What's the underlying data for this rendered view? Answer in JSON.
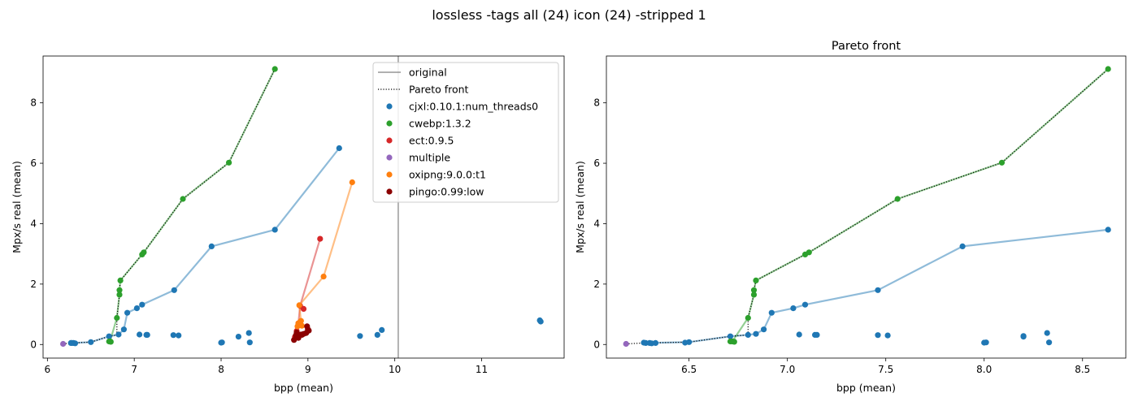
{
  "figure": {
    "suptitle": "lossless -tags all (24) icon (24) -stripped 1"
  },
  "colors": {
    "cjxl": "#1f77b4",
    "cwebp": "#2ca02c",
    "ect": "#d62728",
    "multiple": "#9467bd",
    "oxipng": "#ff7f0e",
    "pingo": "#8b0000",
    "original": "#808080",
    "pareto": "#000000"
  },
  "chart_data": [
    {
      "type": "scatter",
      "title": "",
      "xlabel": "bpp (mean)",
      "ylabel": "Mpx/s real (mean)",
      "xlim": [
        5.95,
        11.95
      ],
      "ylim": [
        -0.45,
        9.55
      ],
      "xticks": [
        6,
        7,
        8,
        9,
        10,
        11
      ],
      "yticks": [
        0,
        2,
        4,
        6,
        8
      ],
      "grid": false,
      "legend_position": "top-right",
      "original_bpp": 10.04,
      "legend": [
        {
          "label": "original",
          "kind": "line",
          "color": "#808080"
        },
        {
          "label": "Pareto front",
          "kind": "dotted",
          "color": "#000000"
        },
        {
          "label": "cjxl:0.10.1:num_threads0",
          "kind": "point",
          "color": "#1f77b4"
        },
        {
          "label": "cwebp:1.3.2",
          "kind": "point",
          "color": "#2ca02c"
        },
        {
          "label": "ect:0.9.5",
          "kind": "point",
          "color": "#d62728"
        },
        {
          "label": "multiple",
          "kind": "point",
          "color": "#9467bd"
        },
        {
          "label": "oxipng:9.0.0:t1",
          "kind": "point",
          "color": "#ff7f0e"
        },
        {
          "label": "pingo:0.99:low",
          "kind": "point",
          "color": "#8b0000"
        }
      ],
      "series": [
        {
          "name": "cjxl:0.10.1:num_threads0",
          "color": "#1f77b4",
          "line": [
            [
              6.3,
              0.05
            ],
            [
              6.5,
              0.08
            ],
            [
              6.71,
              0.27
            ],
            [
              6.82,
              0.33
            ],
            [
              6.88,
              0.5
            ],
            [
              6.92,
              1.05
            ],
            [
              7.03,
              1.2
            ],
            [
              7.09,
              1.32
            ],
            [
              7.46,
              1.8
            ],
            [
              7.89,
              3.25
            ],
            [
              8.62,
              3.8
            ],
            [
              9.36,
              6.5
            ]
          ],
          "extra": [
            [
              6.27,
              0.05
            ],
            [
              6.28,
              0.05
            ],
            [
              6.32,
              0.04
            ],
            [
              7.06,
              0.33
            ],
            [
              7.14,
              0.32
            ],
            [
              7.15,
              0.32
            ],
            [
              7.45,
              0.31
            ],
            [
              7.51,
              0.3
            ],
            [
              8.0,
              0.06
            ],
            [
              8.01,
              0.07
            ],
            [
              8.2,
              0.26
            ],
            [
              8.32,
              0.38
            ],
            [
              8.33,
              0.07
            ],
            [
              9.6,
              0.28
            ],
            [
              9.8,
              0.32
            ],
            [
              9.85,
              0.48
            ],
            [
              11.67,
              0.8
            ],
            [
              11.68,
              0.76
            ]
          ]
        },
        {
          "name": "cwebp:1.3.2",
          "color": "#2ca02c",
          "line": [
            [
              6.72,
              0.1
            ],
            [
              6.8,
              0.88
            ],
            [
              6.83,
              1.65
            ],
            [
              6.83,
              1.8
            ],
            [
              6.84,
              2.12
            ],
            [
              7.09,
              2.98
            ],
            [
              7.11,
              3.05
            ],
            [
              7.56,
              4.82
            ],
            [
              8.09,
              6.02
            ],
            [
              8.62,
              9.12
            ]
          ],
          "extra": [
            [
              6.71,
              0.1
            ],
            [
              6.73,
              0.09
            ]
          ]
        },
        {
          "name": "ect:0.9.5",
          "color": "#d62728",
          "line": [
            [
              8.85,
              0.25
            ],
            [
              8.87,
              0.45
            ],
            [
              8.89,
              0.7
            ],
            [
              8.91,
              1.28
            ],
            [
              9.14,
              3.5
            ]
          ],
          "extra": [
            [
              8.95,
              1.18
            ]
          ]
        },
        {
          "name": "multiple",
          "color": "#9467bd",
          "line": [],
          "extra": [
            [
              6.18,
              0.02
            ]
          ]
        },
        {
          "name": "oxipng:9.0.0:t1",
          "color": "#ff7f0e",
          "line": [
            [
              8.88,
              0.6
            ],
            [
              8.92,
              0.78
            ],
            [
              8.9,
              1.3
            ],
            [
              9.18,
              2.25
            ],
            [
              9.51,
              5.37
            ]
          ],
          "extra": [
            [
              8.89,
              0.7
            ],
            [
              8.91,
              0.75
            ],
            [
              8.93,
              0.62
            ]
          ]
        },
        {
          "name": "pingo:0.99:low",
          "color": "#8b0000",
          "line": [
            [
              8.84,
              0.15
            ],
            [
              8.88,
              0.25
            ],
            [
              8.93,
              0.32
            ],
            [
              8.98,
              0.38
            ],
            [
              9.01,
              0.46
            ]
          ],
          "extra": [
            [
              8.86,
              0.3
            ],
            [
              8.87,
              0.4
            ],
            [
              8.92,
              0.33
            ],
            [
              8.95,
              0.35
            ],
            [
              8.99,
              0.6
            ],
            [
              9.0,
              0.5
            ],
            [
              8.89,
              0.22
            ]
          ]
        }
      ],
      "pareto_front": [
        [
          6.18,
          0.02
        ],
        [
          6.27,
          0.05
        ],
        [
          6.5,
          0.08
        ],
        [
          6.71,
          0.27
        ],
        [
          6.8,
          0.32
        ],
        [
          6.8,
          0.88
        ],
        [
          6.83,
          1.65
        ],
        [
          6.83,
          1.8
        ],
        [
          6.84,
          2.12
        ],
        [
          7.09,
          2.98
        ],
        [
          7.11,
          3.05
        ],
        [
          7.56,
          4.82
        ],
        [
          8.09,
          6.02
        ],
        [
          8.62,
          9.12
        ]
      ]
    },
    {
      "type": "scatter",
      "title": "Pareto front",
      "xlabel": "bpp (mean)",
      "ylabel": "Mpx/s real (mean)",
      "xlim": [
        6.08,
        8.72
      ],
      "ylim": [
        -0.45,
        9.55
      ],
      "xticks": [
        6.5,
        7.0,
        7.5,
        8.0,
        8.5
      ],
      "xtick_labels": [
        "6.5",
        "7.0",
        "7.5",
        "8.0",
        "8.5"
      ],
      "yticks": [
        0,
        2,
        4,
        6,
        8
      ],
      "grid": false,
      "series": [
        {
          "name": "cjxl:0.10.1:num_threads0",
          "color": "#1f77b4",
          "line": [
            [
              6.28,
              0.05
            ],
            [
              6.5,
              0.08
            ],
            [
              6.71,
              0.27
            ],
            [
              6.8,
              0.32
            ],
            [
              6.84,
              0.35
            ],
            [
              6.88,
              0.5
            ],
            [
              6.92,
              1.05
            ],
            [
              7.03,
              1.2
            ],
            [
              7.09,
              1.32
            ],
            [
              7.46,
              1.8
            ],
            [
              7.89,
              3.25
            ],
            [
              8.63,
              3.8
            ]
          ],
          "extra": [
            [
              6.27,
              0.06
            ],
            [
              6.3,
              0.05
            ],
            [
              6.31,
              0.04
            ],
            [
              6.33,
              0.05
            ],
            [
              6.48,
              0.06
            ],
            [
              7.06,
              0.33
            ],
            [
              7.14,
              0.32
            ],
            [
              7.15,
              0.32
            ],
            [
              7.46,
              0.31
            ],
            [
              7.51,
              0.3
            ],
            [
              8.0,
              0.06
            ],
            [
              8.01,
              0.07
            ],
            [
              8.2,
              0.26
            ],
            [
              8.2,
              0.28
            ],
            [
              8.32,
              0.38
            ],
            [
              8.33,
              0.07
            ]
          ]
        },
        {
          "name": "cwebp:1.3.2",
          "color": "#2ca02c",
          "line": [
            [
              6.72,
              0.1
            ],
            [
              6.8,
              0.88
            ],
            [
              6.83,
              1.65
            ],
            [
              6.83,
              1.8
            ],
            [
              6.84,
              2.12
            ],
            [
              7.09,
              2.98
            ],
            [
              7.11,
              3.05
            ],
            [
              7.56,
              4.82
            ],
            [
              8.09,
              6.02
            ],
            [
              8.63,
              9.12
            ]
          ],
          "extra": [
            [
              6.71,
              0.1
            ],
            [
              6.73,
              0.09
            ]
          ]
        },
        {
          "name": "multiple",
          "color": "#9467bd",
          "line": [],
          "extra": [
            [
              6.18,
              0.02
            ]
          ]
        }
      ],
      "pareto_front": [
        [
          6.18,
          0.02
        ],
        [
          6.27,
          0.05
        ],
        [
          6.5,
          0.08
        ],
        [
          6.71,
          0.27
        ],
        [
          6.8,
          0.32
        ],
        [
          6.8,
          0.88
        ],
        [
          6.83,
          1.65
        ],
        [
          6.83,
          1.8
        ],
        [
          6.84,
          2.12
        ],
        [
          7.09,
          2.98
        ],
        [
          7.11,
          3.05
        ],
        [
          7.56,
          4.82
        ],
        [
          8.09,
          6.02
        ],
        [
          8.63,
          9.12
        ]
      ]
    }
  ]
}
